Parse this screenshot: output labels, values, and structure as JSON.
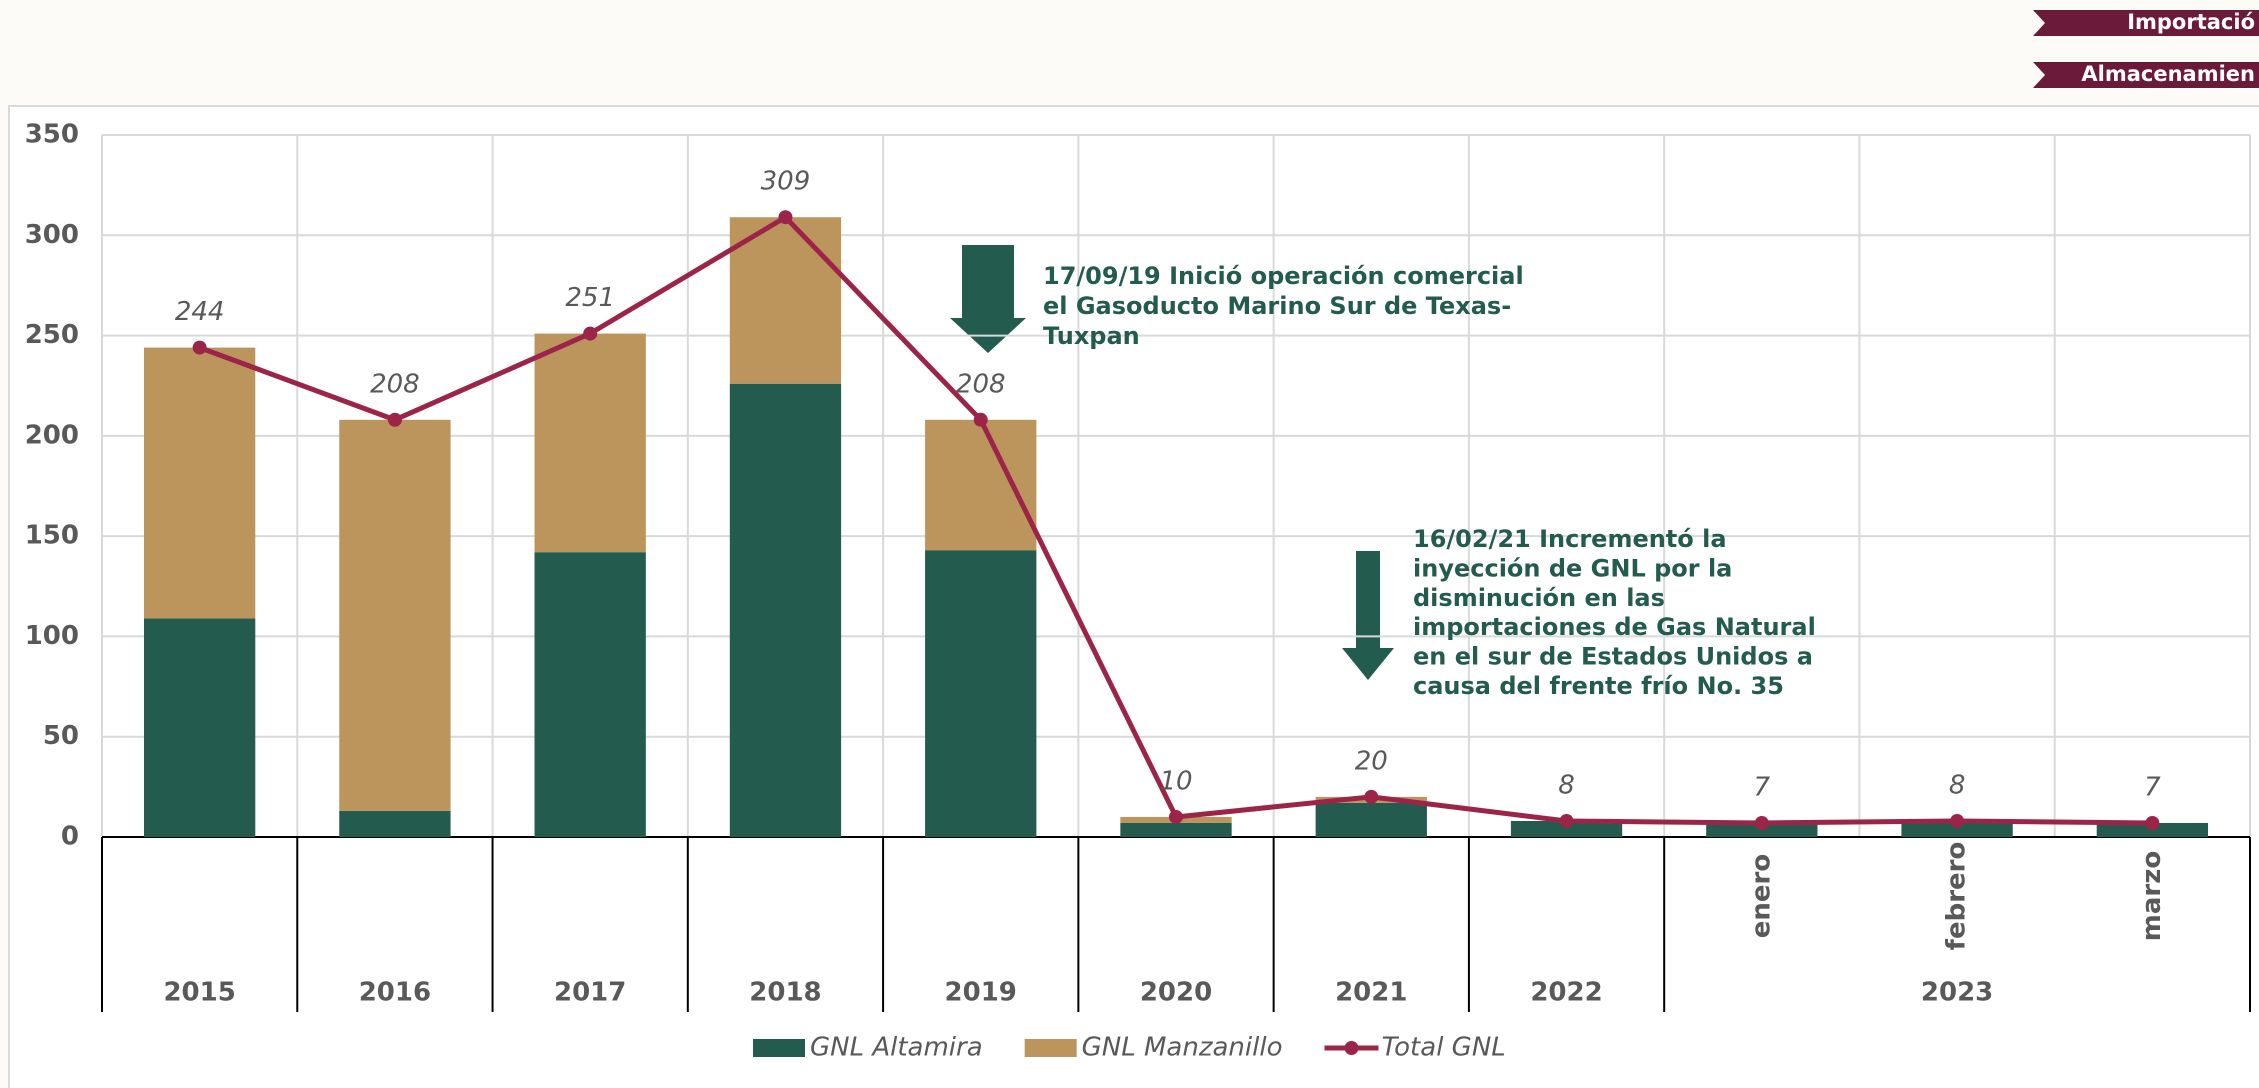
{
  "header_tabs": [
    "Importació",
    "Almacenamien"
  ],
  "chart_data": {
    "type": "bar",
    "stacked": true,
    "categories": [
      [
        "2015"
      ],
      [
        "2016"
      ],
      [
        "2017"
      ],
      [
        "2018"
      ],
      [
        "2019"
      ],
      [
        "2020"
      ],
      [
        "2021"
      ],
      [
        "2022"
      ],
      [
        "enero",
        "2023"
      ],
      [
        "febrero",
        "2023"
      ],
      [
        "marzo",
        "2023"
      ]
    ],
    "series": [
      {
        "name": "GNL Altamira",
        "color": "#235b4e",
        "values": [
          109,
          13,
          142,
          226,
          143,
          7,
          17,
          8,
          7,
          8,
          7
        ]
      },
      {
        "name": "GNL Manzanillo",
        "color": "#bc955c",
        "values": [
          135,
          195,
          109,
          83,
          65,
          3,
          3,
          0,
          0,
          0,
          0
        ]
      },
      {
        "name": "Total GNL",
        "color": "#9d2449",
        "type": "line",
        "values": [
          244,
          208,
          251,
          309,
          208,
          10,
          20,
          8,
          7,
          8,
          7
        ]
      }
    ],
    "ylim": [
      0,
      350
    ],
    "yticks": [
      0,
      50,
      100,
      150,
      200,
      250,
      300,
      350
    ],
    "grid": true,
    "annotations": [
      {
        "lines": [
          "17/09/19 Inició operación comercial",
          "el Gasoducto Marino Sur de Texas-",
          "Tuxpan"
        ]
      },
      {
        "lines": [
          "16/02/21 Incrementó la",
          "inyección de GNL por la",
          "disminución en las",
          "importaciones de Gas Natural",
          "en el sur de Estados Unidos a",
          "causa del frente frío No. 35"
        ]
      }
    ]
  }
}
